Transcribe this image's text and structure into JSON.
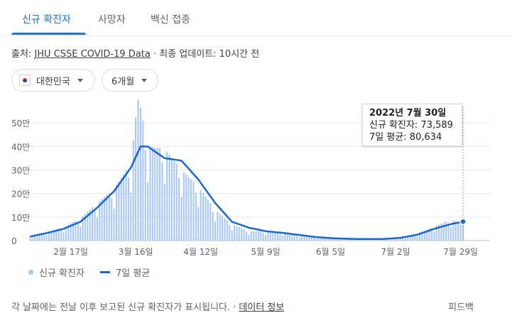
{
  "tabs": [
    {
      "label": "신규 확진자",
      "active": true
    },
    {
      "label": "사망자",
      "active": false
    },
    {
      "label": "백신 접종",
      "active": false
    }
  ],
  "source": {
    "prefix": "출처: ",
    "link": "JHU CSSE COVID-19 Data",
    "suffix": " · 최종 업데이트: 10시간 전"
  },
  "filters": {
    "country": {
      "label": "대한민국",
      "icon": "korea-flag-icon"
    },
    "period": {
      "label": "6개월"
    }
  },
  "tooltip": {
    "date": "2022년 7월 30일",
    "cases_line": "신규 확진자: 73,589",
    "avg_line": "7일 평균: 80,634"
  },
  "legend": {
    "cases": "신규 확진자",
    "avg": "7일 평균"
  },
  "footer": {
    "note": "각 날짜에는 전날 이후 보고된 신규 확진자가 표시됩니다. ·",
    "link": "데이터 정보",
    "feedback": "피드백"
  },
  "colors": {
    "bars": "#a8c7fa",
    "line": "#1967d2",
    "accent": "#1a73e8"
  },
  "chart_data": {
    "type": "bar",
    "title": "",
    "xlabel": "",
    "ylabel": "",
    "ylim": [
      0,
      570000
    ],
    "yticks": [
      {
        "value": 0,
        "label": "0"
      },
      {
        "value": 100000,
        "label": "10만"
      },
      {
        "value": 200000,
        "label": "20만"
      },
      {
        "value": 300000,
        "label": "30만"
      },
      {
        "value": 400000,
        "label": "40만"
      },
      {
        "value": 500000,
        "label": "50만"
      }
    ],
    "xticks": [
      {
        "date": "2022-02-17",
        "label": "2월 17일"
      },
      {
        "date": "2022-03-16",
        "label": "3월 16일"
      },
      {
        "date": "2022-04-12",
        "label": "4월 12일"
      },
      {
        "date": "2022-05-09",
        "label": "5월 9일"
      },
      {
        "date": "2022-06-05",
        "label": "6월 5일"
      },
      {
        "date": "2022-07-02",
        "label": "7월 2일"
      },
      {
        "date": "2022-07-29",
        "label": "7월 29일"
      }
    ],
    "grid": true,
    "start_date": "2022-01-31",
    "end_date": "2022-07-30",
    "series": [
      {
        "name": "신규 확진자",
        "type": "bar",
        "anchors": [
          [
            "2022-01-31",
            17000
          ],
          [
            "2022-02-07",
            36000
          ],
          [
            "2022-02-14",
            57000
          ],
          [
            "2022-02-21",
            95000
          ],
          [
            "2022-02-28",
            160000
          ],
          [
            "2022-03-07",
            220000
          ],
          [
            "2022-03-14",
            330000
          ],
          [
            "2022-03-17",
            621000
          ],
          [
            "2022-03-21",
            400000
          ],
          [
            "2022-03-28",
            390000
          ],
          [
            "2022-04-04",
            300000
          ],
          [
            "2022-04-11",
            230000
          ],
          [
            "2022-04-18",
            130000
          ],
          [
            "2022-04-25",
            70000
          ],
          [
            "2022-05-02",
            40000
          ],
          [
            "2022-05-09",
            38000
          ],
          [
            "2022-05-16",
            33000
          ],
          [
            "2022-05-23",
            23000
          ],
          [
            "2022-05-30",
            16000
          ],
          [
            "2022-06-06",
            10000
          ],
          [
            "2022-06-13",
            7000
          ],
          [
            "2022-06-20",
            6000
          ],
          [
            "2022-06-27",
            7000
          ],
          [
            "2022-07-04",
            12000
          ],
          [
            "2022-07-11",
            30000
          ],
          [
            "2022-07-18",
            60000
          ],
          [
            "2022-07-25",
            90000
          ],
          [
            "2022-07-30",
            73589
          ]
        ]
      },
      {
        "name": "7일 평균",
        "type": "line",
        "anchors": [
          [
            "2022-01-31",
            17000
          ],
          [
            "2022-02-07",
            32000
          ],
          [
            "2022-02-14",
            50000
          ],
          [
            "2022-02-21",
            80000
          ],
          [
            "2022-02-28",
            140000
          ],
          [
            "2022-03-07",
            210000
          ],
          [
            "2022-03-14",
            310000
          ],
          [
            "2022-03-18",
            400000
          ],
          [
            "2022-03-21",
            400000
          ],
          [
            "2022-03-28",
            350000
          ],
          [
            "2022-04-04",
            340000
          ],
          [
            "2022-04-11",
            260000
          ],
          [
            "2022-04-18",
            160000
          ],
          [
            "2022-04-25",
            80000
          ],
          [
            "2022-05-02",
            55000
          ],
          [
            "2022-05-09",
            40000
          ],
          [
            "2022-05-16",
            33000
          ],
          [
            "2022-05-23",
            24000
          ],
          [
            "2022-05-30",
            15000
          ],
          [
            "2022-06-06",
            10000
          ],
          [
            "2022-06-13",
            7500
          ],
          [
            "2022-06-20",
            6500
          ],
          [
            "2022-06-27",
            7000
          ],
          [
            "2022-07-04",
            12000
          ],
          [
            "2022-07-11",
            25000
          ],
          [
            "2022-07-18",
            50000
          ],
          [
            "2022-07-25",
            70000
          ],
          [
            "2022-07-30",
            80634
          ]
        ]
      }
    ]
  }
}
